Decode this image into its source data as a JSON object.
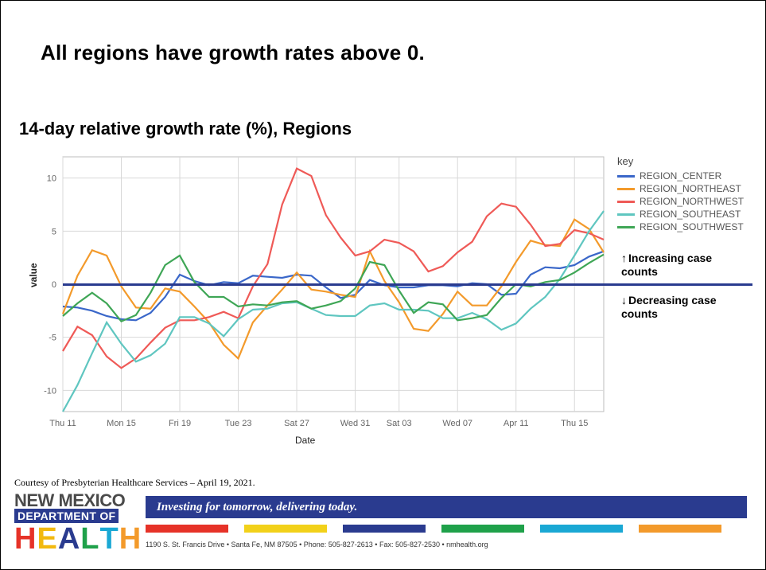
{
  "heading": "All regions have growth rates above 0.",
  "subtitle": "14-day relative growth rate (%), Regions",
  "chart": {
    "type": "line",
    "x_axis_label": "Date",
    "y_axis_label": "value",
    "background_color": "#ffffff",
    "grid_color": "#d8d8d8",
    "axis_color": "#bcbcbc",
    "line_width": 2.2,
    "font_size_axis": 11,
    "x_categories": [
      "Thu 11",
      "",
      "",
      "",
      "Mon 15",
      "",
      "",
      "",
      "Fri 19",
      "",
      "",
      "",
      "Tue 23",
      "",
      "",
      "",
      "Sat 27",
      "",
      "",
      "",
      "Wed 31",
      "",
      "",
      "Sat 03",
      "",
      "",
      "",
      "Wed 07",
      "",
      "",
      "",
      "Apr 11",
      "",
      "",
      "",
      "Thu 15",
      "",
      ""
    ],
    "x_tick_indices": [
      0,
      4,
      8,
      12,
      16,
      20,
      23,
      27,
      31,
      35
    ],
    "x_tick_labels": [
      "Thu 11",
      "Mon 15",
      "Fri 19",
      "Tue 23",
      "Sat 27",
      "Wed 31",
      "Sat 03",
      "Wed 07",
      "Apr 11",
      "Thu 15"
    ],
    "ylim": [
      -12,
      12
    ],
    "ytick_step": 5,
    "yticks": [
      -10,
      -5,
      0,
      5,
      10
    ],
    "series": [
      {
        "name": "REGION_CENTER",
        "color": "#3a67c9",
        "values": [
          -2.1,
          -2.2,
          -2.5,
          -3.0,
          -3.3,
          -3.4,
          -2.7,
          -1.2,
          0.9,
          0.3,
          -0.1,
          0.2,
          0.1,
          0.8,
          0.7,
          0.6,
          0.9,
          0.8,
          -0.3,
          -1.3,
          -1.0,
          0.4,
          -0.1,
          -0.3,
          -0.3,
          -0.1,
          -0.1,
          -0.2,
          0.1,
          0.0,
          -1.0,
          -0.9,
          0.9,
          1.6,
          1.5,
          1.8,
          2.6,
          3.1
        ]
      },
      {
        "name": "REGION_NORTHEAST",
        "color": "#f39a2b",
        "values": [
          -2.8,
          0.8,
          3.2,
          2.7,
          -0.2,
          -2.2,
          -2.3,
          -0.4,
          -0.7,
          -2.1,
          -3.6,
          -5.7,
          -7.0,
          -3.6,
          -2.0,
          -0.5,
          1.1,
          -0.5,
          -0.7,
          -1.0,
          -1.2,
          3.1,
          0.3,
          -1.7,
          -4.2,
          -4.4,
          -2.8,
          -0.7,
          -2.0,
          -2.0,
          -0.2,
          2.1,
          4.1,
          3.7,
          3.6,
          6.1,
          5.2,
          3.0
        ]
      },
      {
        "name": "REGION_NORTHWEST",
        "color": "#ef5a57",
        "values": [
          -6.3,
          -4.0,
          -4.8,
          -6.8,
          -7.9,
          -7.0,
          -5.5,
          -4.1,
          -3.4,
          -3.4,
          -3.1,
          -2.6,
          -3.2,
          -0.2,
          1.9,
          7.5,
          10.9,
          10.2,
          6.5,
          4.4,
          2.7,
          3.1,
          4.2,
          3.9,
          3.1,
          1.2,
          1.7,
          3.0,
          4.0,
          6.4,
          7.6,
          7.3,
          5.6,
          3.6,
          3.8,
          5.1,
          4.8,
          4.2
        ]
      },
      {
        "name": "REGION_SOUTHEAST",
        "color": "#5fc6c0",
        "values": [
          -12.0,
          -9.5,
          -6.5,
          -3.6,
          -5.6,
          -7.3,
          -6.7,
          -5.6,
          -3.1,
          -3.1,
          -3.7,
          -4.9,
          -3.3,
          -2.4,
          -2.3,
          -1.8,
          -1.7,
          -2.3,
          -2.9,
          -3.0,
          -3.0,
          -2.0,
          -1.8,
          -2.4,
          -2.4,
          -2.5,
          -3.2,
          -3.2,
          -2.7,
          -3.3,
          -4.3,
          -3.7,
          -2.3,
          -1.2,
          0.5,
          2.7,
          5.0,
          6.9
        ]
      },
      {
        "name": "REGION_SOUTHWEST",
        "color": "#3fa656",
        "values": [
          -3.0,
          -1.8,
          -0.8,
          -1.8,
          -3.5,
          -2.9,
          -0.8,
          1.8,
          2.7,
          0.2,
          -1.2,
          -1.2,
          -2.1,
          -1.9,
          -2.0,
          -1.7,
          -1.6,
          -2.3,
          -2.0,
          -1.6,
          -0.4,
          2.1,
          1.8,
          -0.6,
          -2.7,
          -1.7,
          -1.9,
          -3.4,
          -3.2,
          -2.9,
          -1.3,
          0.0,
          -0.2,
          0.2,
          0.4,
          1.1,
          2.0,
          2.8
        ]
      }
    ],
    "zero_reference_line": {
      "color": "#2a3b8f",
      "width": 3
    }
  },
  "legend": {
    "title": "key",
    "items": [
      {
        "label": "REGION_CENTER",
        "color": "#3a67c9"
      },
      {
        "label": "REGION_NORTHEAST",
        "color": "#f39a2b"
      },
      {
        "label": "REGION_NORTHWEST",
        "color": "#ef5a57"
      },
      {
        "label": "REGION_SOUTHEAST",
        "color": "#5fc6c0"
      },
      {
        "label": "REGION_SOUTHWEST",
        "color": "#3fa656"
      }
    ]
  },
  "annotations": {
    "up": "Increasing case counts",
    "down": "Decreasing case counts"
  },
  "courtesy": "Courtesy of Presbyterian Healthcare Services – April 19, 2021.",
  "footer": {
    "org_line1": "NEW MEXICO",
    "org_line2": "DEPARTMENT OF",
    "org_line3": "HEALTH",
    "health_letter_colors": [
      "#e63228",
      "#f2b90f",
      "#2a3b8f",
      "#1fa14a",
      "#1aa8d4",
      "#f39a2b"
    ],
    "tagline": "Investing for tomorrow, delivering today.",
    "tagline_bg": "#2a3b8f",
    "strip_colors": [
      "#e63228",
      "#f2d11a",
      "#2a3b8f",
      "#1fa14a",
      "#1aa8d4",
      "#f39a2b"
    ],
    "address": "1190 S. St. Francis Drive • Santa Fe, NM 87505 • Phone: 505-827-2613 • Fax: 505-827-2530 • nmhealth.org"
  }
}
